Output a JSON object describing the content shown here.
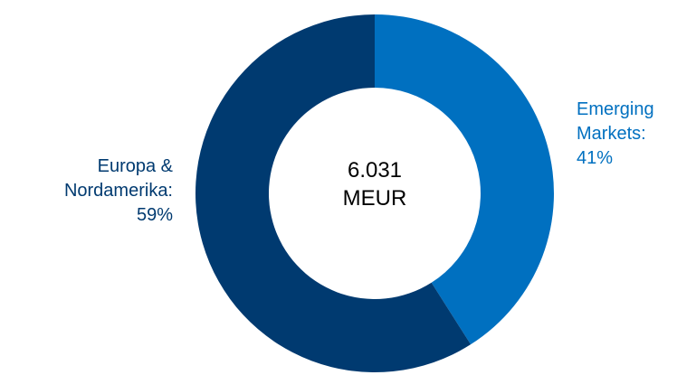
{
  "chart_data": {
    "type": "pie",
    "donut": true,
    "center_text": [
      "6.031",
      "MEUR"
    ],
    "slices": [
      {
        "label_lines": [
          "Emerging",
          "Markets:",
          "41%"
        ],
        "value": 41,
        "color": "#0070C0"
      },
      {
        "label_lines": [
          "Europa &",
          "Nordamerika:",
          "59%"
        ],
        "value": 59,
        "color": "#003A70"
      }
    ],
    "legend": "none"
  }
}
